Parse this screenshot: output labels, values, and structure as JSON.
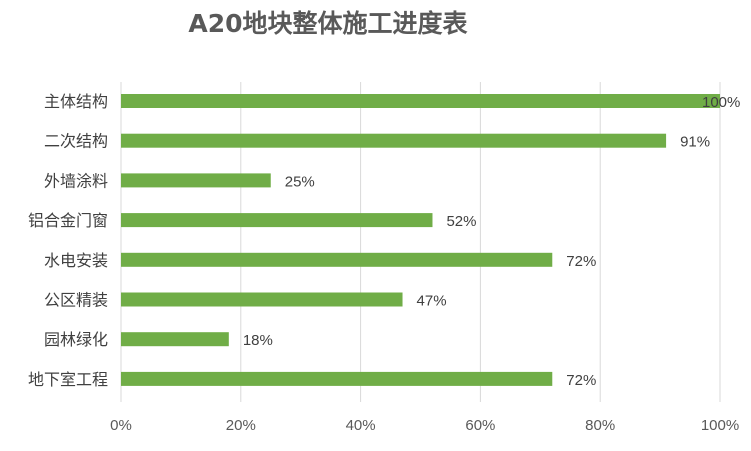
{
  "chart_data": {
    "type": "bar",
    "orientation": "horizontal",
    "title": "A20地块整体施工进度表",
    "categories": [
      "主体结构",
      "二次结构",
      "外墙涂料",
      "铝合金门窗",
      "水电安装",
      "公区精装",
      "园林绿化",
      "地下室工程"
    ],
    "values": [
      100,
      91,
      25,
      52,
      72,
      47,
      18,
      72
    ],
    "value_suffix": "%",
    "xlim": [
      0,
      100
    ],
    "xticks": [
      "0%",
      "20%",
      "40%",
      "60%",
      "80%",
      "100%"
    ],
    "grid": true,
    "legend": false,
    "bar_color": "#70ad47"
  }
}
